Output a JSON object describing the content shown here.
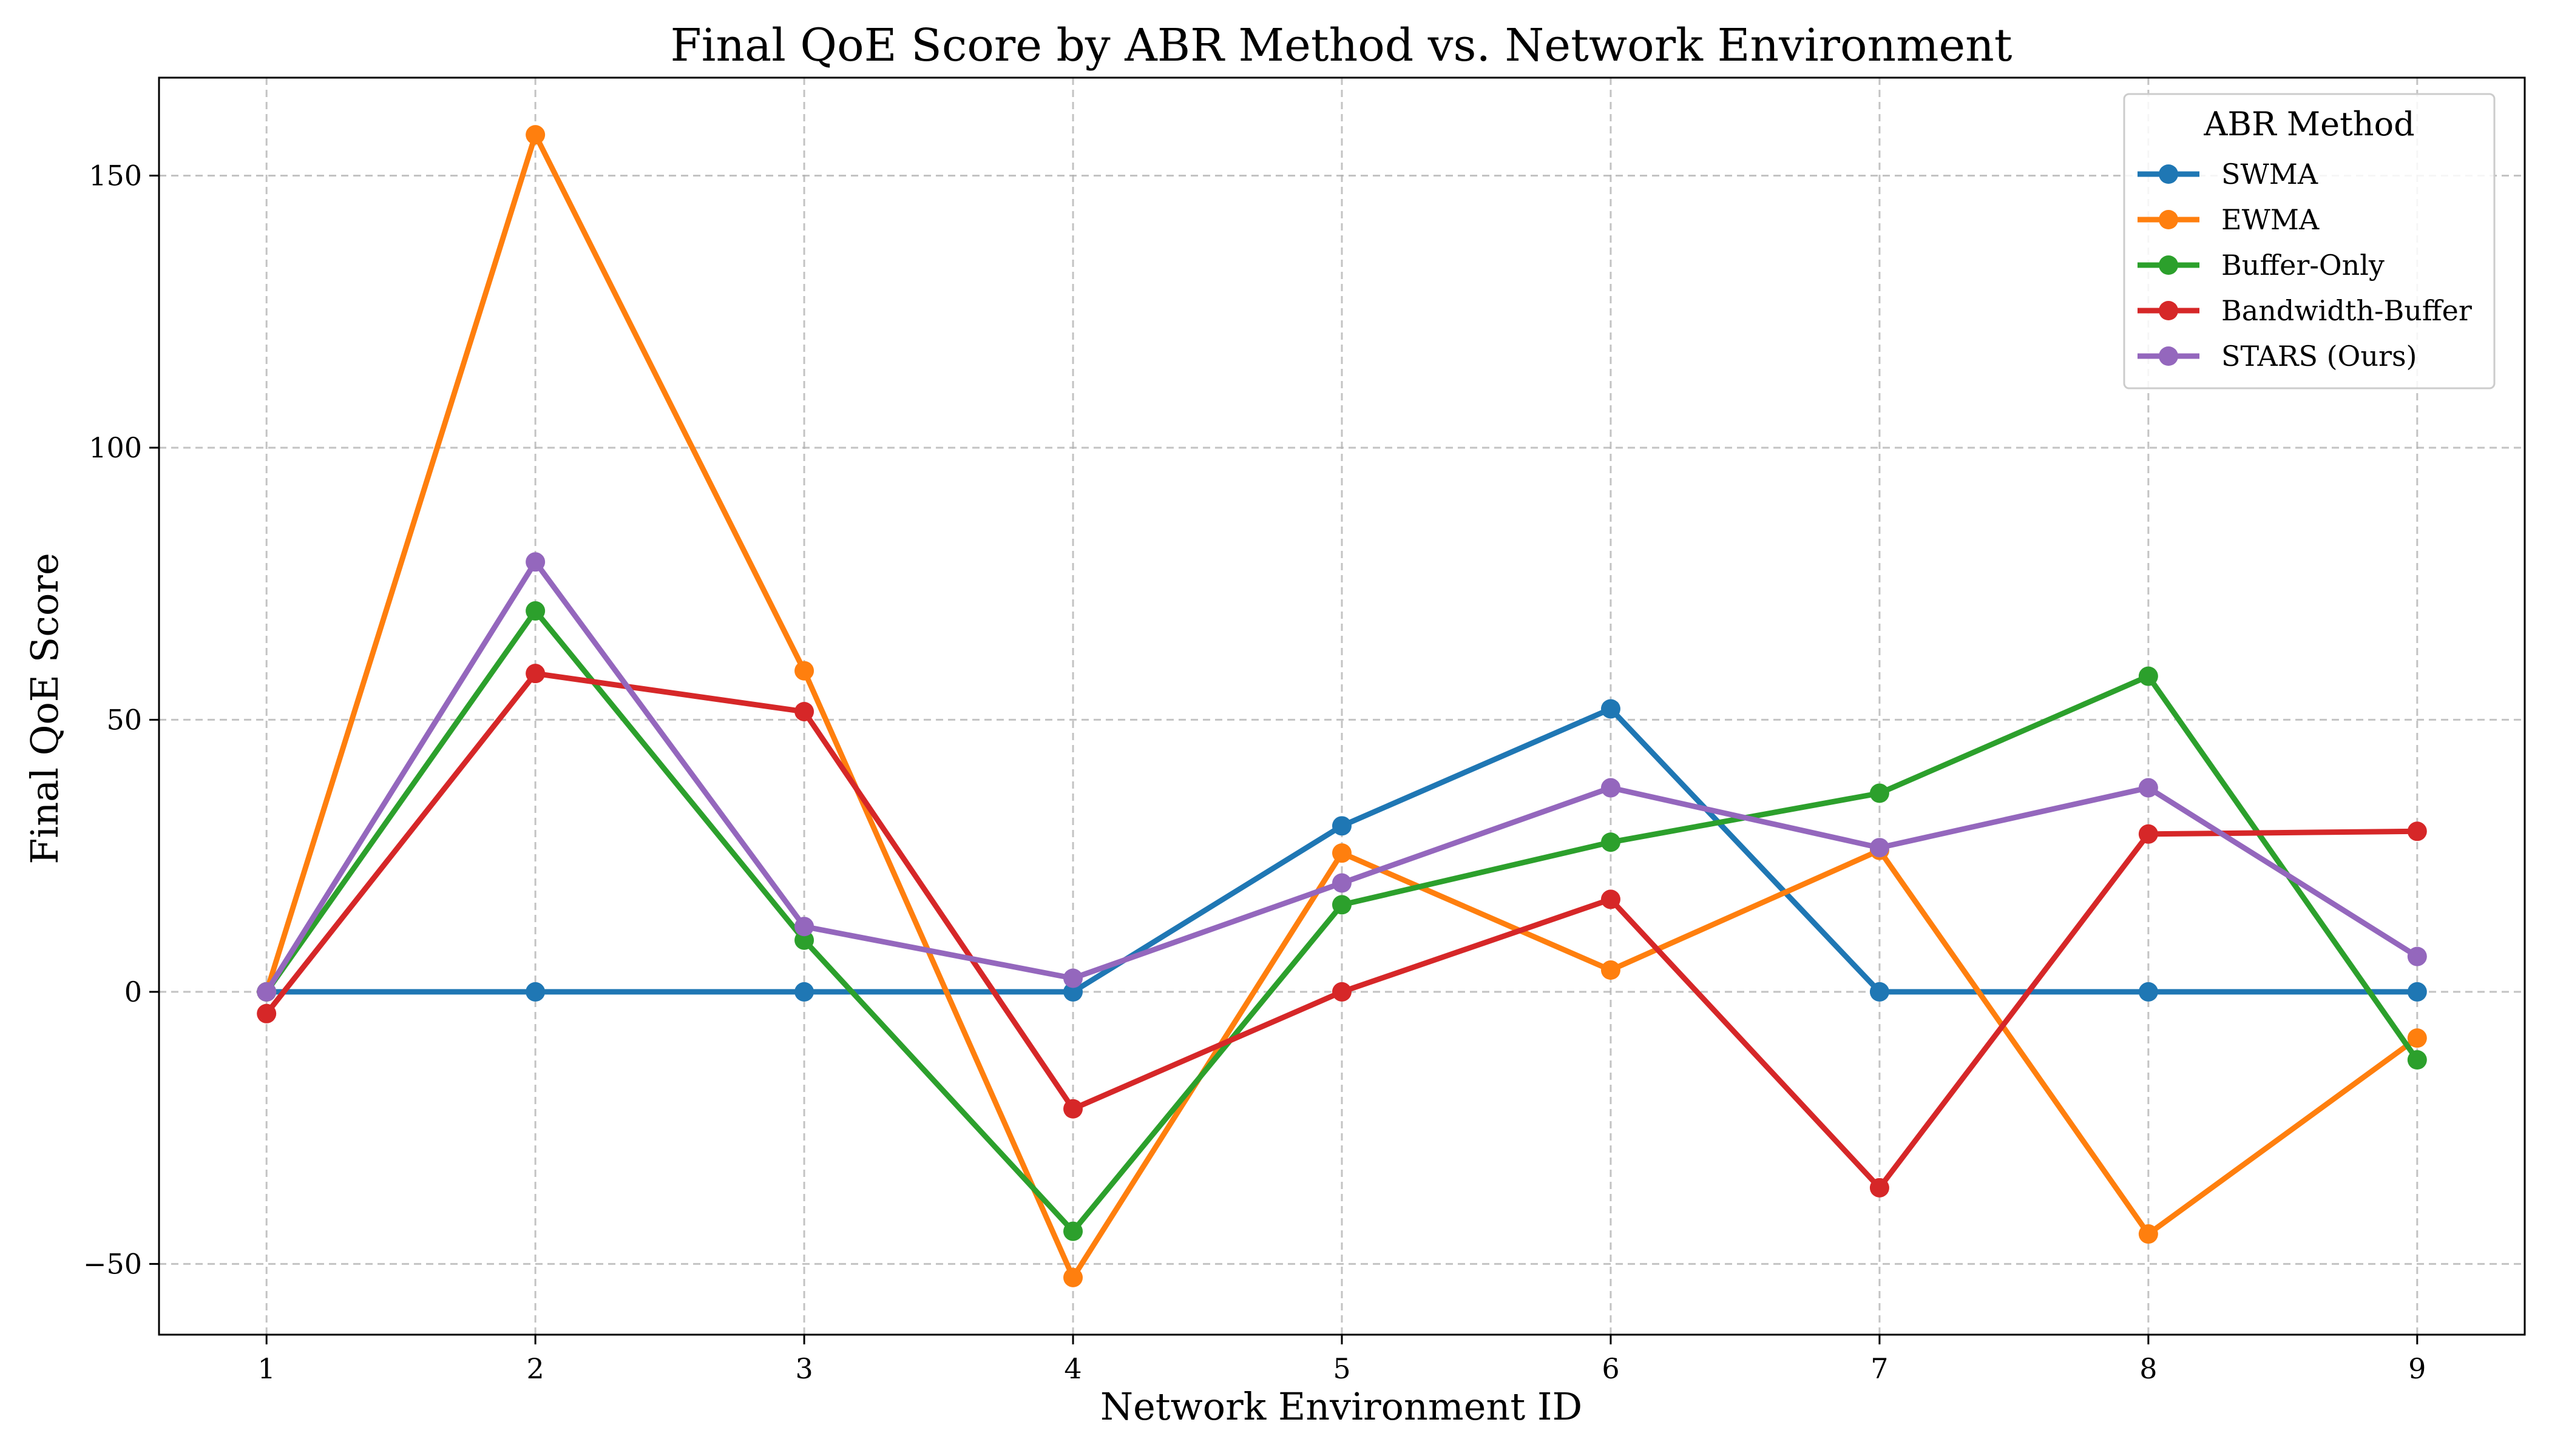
{
  "chart_data": {
    "type": "line",
    "title": "Final QoE Score by ABR Method vs. Network Environment",
    "xlabel": "Network Environment ID",
    "ylabel": "Final QoE Score",
    "x": [
      1,
      2,
      3,
      4,
      5,
      6,
      7,
      8,
      9
    ],
    "xlim": [
      0.6,
      9.4
    ],
    "ylim": [
      -63,
      168
    ],
    "yticks": [
      -50,
      0,
      50,
      100,
      150
    ],
    "grid": true,
    "legend": {
      "title": "ABR Method",
      "placement": "top-right"
    },
    "series": [
      {
        "name": "SWMA",
        "color": "#1f77b4",
        "values": [
          0,
          0,
          0,
          0,
          30.5,
          52,
          0,
          0,
          0
        ]
      },
      {
        "name": "EWMA",
        "color": "#ff7f0e",
        "values": [
          0,
          157.5,
          59,
          -52.5,
          25.5,
          4,
          26,
          -44.5,
          -8.5
        ]
      },
      {
        "name": "Buffer-Only",
        "color": "#2ca02c",
        "values": [
          0,
          70,
          9.5,
          -44,
          16,
          27.5,
          36.5,
          58,
          -12.5
        ]
      },
      {
        "name": "Bandwidth-Buffer",
        "color": "#d62728",
        "values": [
          -4,
          58.5,
          51.5,
          -21.5,
          0,
          17,
          -36,
          29,
          29.5
        ]
      },
      {
        "name": "STARS (Ours)",
        "color": "#9467bd",
        "values": [
          0,
          79,
          12,
          2.5,
          20,
          37.5,
          26.5,
          37.5,
          6.5
        ]
      }
    ]
  }
}
